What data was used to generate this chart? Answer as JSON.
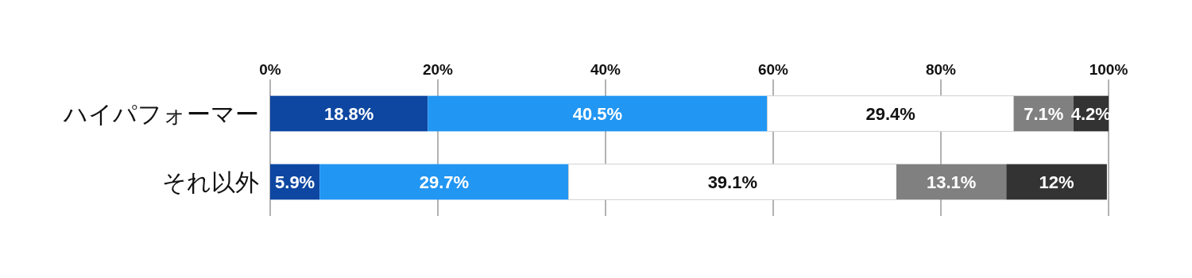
{
  "chart_data": {
    "type": "bar",
    "orientation": "horizontal",
    "stacked": true,
    "grid": "x",
    "categories": [
      "ハイパフォーマー",
      "それ以外"
    ],
    "xlim": [
      0,
      100
    ],
    "xticks": [
      {
        "value": 0,
        "label": "0%"
      },
      {
        "value": 20,
        "label": "20%"
      },
      {
        "value": 40,
        "label": "40%"
      },
      {
        "value": 60,
        "label": "60%"
      },
      {
        "value": 80,
        "label": "80%"
      },
      {
        "value": 100,
        "label": "100%"
      }
    ],
    "series": [
      {
        "color": "#0d47a1",
        "values": [
          18.8,
          5.9
        ],
        "value_labels": [
          "18.8%",
          "5.9%"
        ]
      },
      {
        "color": "#2196f3",
        "values": [
          40.5,
          29.7
        ],
        "value_labels": [
          "40.5%",
          "29.7%"
        ]
      },
      {
        "color": "#ffffff",
        "values": [
          29.4,
          39.1
        ],
        "value_labels": [
          "29.4%",
          "39.1%"
        ]
      },
      {
        "color": "#808080",
        "values": [
          7.1,
          13.1
        ],
        "value_labels": [
          "7.1%",
          "13.1%"
        ]
      },
      {
        "color": "#333333",
        "values": [
          4.2,
          12
        ],
        "value_labels": [
          "4.2%",
          "12%"
        ]
      }
    ]
  }
}
